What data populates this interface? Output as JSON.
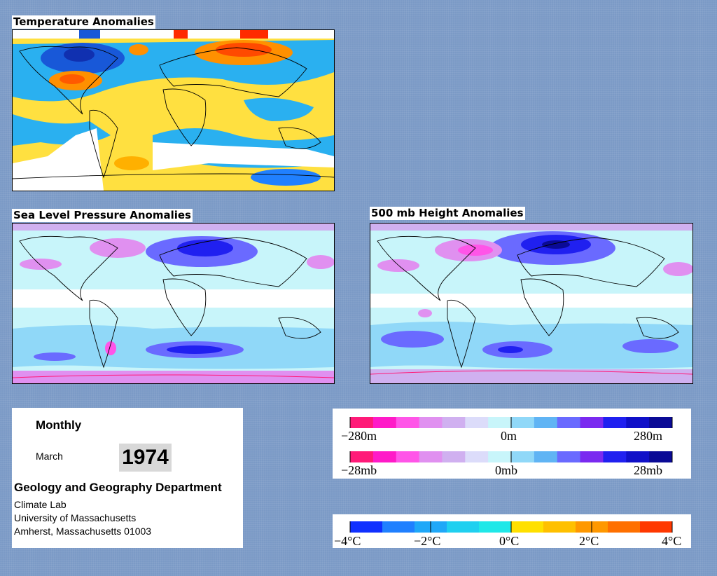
{
  "panels": {
    "temperature": {
      "title": "Temperature Anomalies"
    },
    "slp": {
      "title": "Sea Level Pressure Anomalies"
    },
    "height500": {
      "title": "500 mb Height Anomalies"
    }
  },
  "info": {
    "period": "Monthly",
    "month": "March",
    "year": "1974",
    "department": "Geology and Geography Department",
    "lab": "Climate Lab",
    "university": "University of Massachusetts",
    "address": "Amherst, Massachusetts 01003"
  },
  "legends": {
    "height": {
      "min": "−280m",
      "mid": "0m",
      "max": "280m"
    },
    "pressure": {
      "min": "−28mb",
      "mid": "0mb",
      "max": "28mb"
    },
    "temperature": {
      "t1": "−4°C",
      "t2": "−2°C",
      "t3": "0°C",
      "t4": "2°C",
      "t5": "4°C"
    }
  },
  "colors": {
    "background": "#7b9ac6",
    "anomaly_scale": [
      "#ff1a78",
      "#ff1ac8",
      "#ff55e8",
      "#e090f0",
      "#d0b0f0",
      "#dcdcfa",
      "#c8f5fa",
      "#90d8f8",
      "#60b4f4",
      "#6a6aff",
      "#7a2af0",
      "#2020f0",
      "#1010c8",
      "#0a0a96"
    ],
    "temperature_scale": [
      "#1030ff",
      "#2080ff",
      "#20a8f8",
      "#20d0f0",
      "#20e8e8",
      "#ffe000",
      "#ffc000",
      "#ff9800",
      "#ff7000",
      "#ff3800"
    ]
  }
}
